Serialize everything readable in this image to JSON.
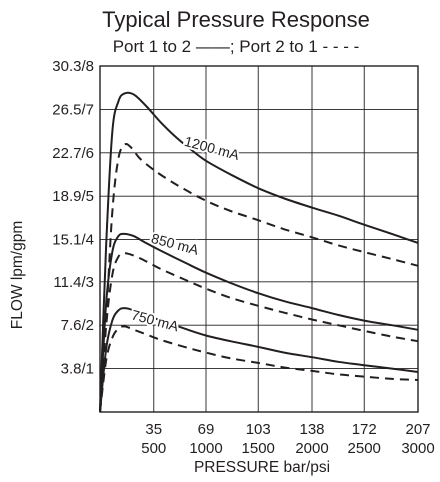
{
  "chart_data": {
    "type": "line",
    "title": "Typical Pressure Response",
    "subtitle": "Port 1 to 2 ——; Port 2 to 1 - - - -",
    "xlabel": "PRESSURE bar/psi",
    "ylabel": "FLOW lpm/gpm",
    "x_ticks": [
      {
        "value": 35,
        "bar": "35",
        "psi": "500"
      },
      {
        "value": 69,
        "bar": "69",
        "psi": "1000"
      },
      {
        "value": 103,
        "bar": "103",
        "psi": "1500"
      },
      {
        "value": 138,
        "bar": "138",
        "psi": "2000"
      },
      {
        "value": 172,
        "bar": "172",
        "psi": "2500"
      },
      {
        "value": 207,
        "bar": "207",
        "psi": "3000"
      }
    ],
    "y_ticks": [
      {
        "value": 3.8,
        "label": "3.8/1"
      },
      {
        "value": 7.6,
        "label": "7.6/2"
      },
      {
        "value": 11.4,
        "label": "11.4/3"
      },
      {
        "value": 15.1,
        "label": "15.1/4"
      },
      {
        "value": 18.9,
        "label": "18.9/5"
      },
      {
        "value": 22.7,
        "label": "22.7/6"
      },
      {
        "value": 26.5,
        "label": "26.5/7"
      },
      {
        "value": 30.3,
        "label": "30.3/8"
      }
    ],
    "xlim": [
      0,
      207
    ],
    "ylim": [
      0,
      30.3
    ],
    "grid": true,
    "curve_labels": [
      {
        "text": "1200 mA",
        "x": 72,
        "y": 22.7
      },
      {
        "text": "850 mA",
        "x": 48,
        "y": 14.3
      },
      {
        "text": "750 mA",
        "x": 35,
        "y": 7.6
      }
    ],
    "series": [
      {
        "current": "1200 mA",
        "direction": "Port 1 to 2",
        "style": "solid",
        "points": [
          [
            0,
            0
          ],
          [
            4,
            14.5
          ],
          [
            8,
            24.5
          ],
          [
            12,
            27.2
          ],
          [
            16,
            27.9
          ],
          [
            22,
            27.8
          ],
          [
            30,
            26.8
          ],
          [
            40,
            25.3
          ],
          [
            50,
            24.0
          ],
          [
            60,
            22.9
          ],
          [
            69,
            22.0
          ],
          [
            85,
            20.8
          ],
          [
            103,
            19.6
          ],
          [
            120,
            18.7
          ],
          [
            138,
            17.9
          ],
          [
            155,
            17.2
          ],
          [
            172,
            16.4
          ],
          [
            190,
            15.6
          ],
          [
            207,
            14.8
          ]
        ]
      },
      {
        "current": "1200 mA",
        "direction": "Port 2 to 1",
        "style": "dashed",
        "points": [
          [
            0,
            0
          ],
          [
            4,
            8.0
          ],
          [
            8,
            17.5
          ],
          [
            12,
            22.2
          ],
          [
            16,
            23.4
          ],
          [
            20,
            23.2
          ],
          [
            26,
            22.2
          ],
          [
            35,
            21.2
          ],
          [
            45,
            20.3
          ],
          [
            55,
            19.5
          ],
          [
            69,
            18.5
          ],
          [
            85,
            17.6
          ],
          [
            103,
            16.8
          ],
          [
            120,
            16.0
          ],
          [
            138,
            15.3
          ],
          [
            155,
            14.6
          ],
          [
            172,
            14.0
          ],
          [
            190,
            13.4
          ],
          [
            207,
            12.8
          ]
        ]
      },
      {
        "current": "850 mA",
        "direction": "Port 1 to 2",
        "style": "solid",
        "points": [
          [
            0,
            0
          ],
          [
            4,
            9.5
          ],
          [
            8,
            14.0
          ],
          [
            12,
            15.4
          ],
          [
            16,
            15.6
          ],
          [
            22,
            15.4
          ],
          [
            30,
            14.8
          ],
          [
            40,
            14.1
          ],
          [
            55,
            13.1
          ],
          [
            69,
            12.2
          ],
          [
            85,
            11.3
          ],
          [
            103,
            10.4
          ],
          [
            120,
            9.7
          ],
          [
            138,
            9.1
          ],
          [
            155,
            8.5
          ],
          [
            172,
            8.0
          ],
          [
            190,
            7.6
          ],
          [
            207,
            7.2
          ]
        ]
      },
      {
        "current": "850 mA",
        "direction": "Port 2 to 1",
        "style": "dashed",
        "points": [
          [
            0,
            0
          ],
          [
            4,
            7.5
          ],
          [
            8,
            12.0
          ],
          [
            12,
            13.6
          ],
          [
            16,
            13.9
          ],
          [
            22,
            13.7
          ],
          [
            30,
            13.2
          ],
          [
            40,
            12.5
          ],
          [
            55,
            11.6
          ],
          [
            69,
            10.8
          ],
          [
            85,
            10.0
          ],
          [
            103,
            9.3
          ],
          [
            120,
            8.7
          ],
          [
            138,
            8.1
          ],
          [
            155,
            7.6
          ],
          [
            172,
            7.1
          ],
          [
            190,
            6.6
          ],
          [
            207,
            6.2
          ]
        ]
      },
      {
        "current": "750 mA",
        "direction": "Port 1 to 2",
        "style": "solid",
        "points": [
          [
            0,
            0
          ],
          [
            4,
            5.5
          ],
          [
            8,
            8.0
          ],
          [
            12,
            8.9
          ],
          [
            16,
            9.1
          ],
          [
            22,
            8.9
          ],
          [
            30,
            8.5
          ],
          [
            40,
            8.0
          ],
          [
            55,
            7.3
          ],
          [
            69,
            6.7
          ],
          [
            85,
            6.2
          ],
          [
            103,
            5.7
          ],
          [
            120,
            5.2
          ],
          [
            138,
            4.8
          ],
          [
            155,
            4.4
          ],
          [
            172,
            4.1
          ],
          [
            190,
            3.8
          ],
          [
            207,
            3.5
          ]
        ]
      },
      {
        "current": "750 mA",
        "direction": "Port 2 to 1",
        "style": "dashed",
        "points": [
          [
            0,
            0
          ],
          [
            4,
            4.5
          ],
          [
            8,
            6.5
          ],
          [
            12,
            7.3
          ],
          [
            16,
            7.5
          ],
          [
            22,
            7.2
          ],
          [
            30,
            6.8
          ],
          [
            40,
            6.3
          ],
          [
            55,
            5.7
          ],
          [
            69,
            5.2
          ],
          [
            85,
            4.7
          ],
          [
            103,
            4.3
          ],
          [
            120,
            3.9
          ],
          [
            138,
            3.6
          ],
          [
            155,
            3.3
          ],
          [
            172,
            3.1
          ],
          [
            190,
            2.9
          ],
          [
            207,
            2.8
          ]
        ]
      }
    ],
    "colors": {
      "line": "#231f20",
      "grid": "#231f20",
      "background": "#ffffff"
    }
  }
}
